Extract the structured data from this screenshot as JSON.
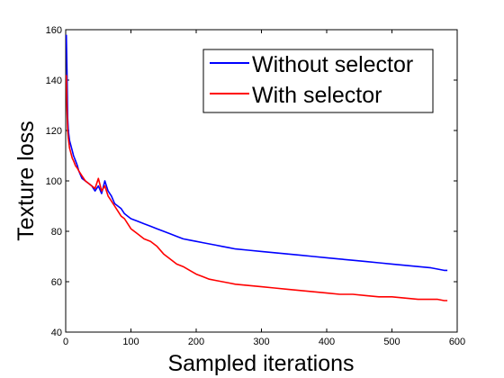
{
  "chart_data": {
    "type": "line",
    "title": "",
    "xlabel": "Sampled iterations",
    "ylabel": "Texture loss",
    "xlim": [
      0,
      600
    ],
    "ylim": [
      40,
      160
    ],
    "xticks": [
      0,
      100,
      200,
      300,
      400,
      500,
      600
    ],
    "yticks": [
      40,
      60,
      80,
      100,
      120,
      140,
      160
    ],
    "grid": false,
    "legend_position": "top-right",
    "series": [
      {
        "name": "Without selector",
        "color": "#0000ff",
        "x": [
          1,
          2,
          3,
          4,
          5,
          6,
          8,
          10,
          12,
          15,
          18,
          20,
          25,
          30,
          35,
          40,
          45,
          50,
          55,
          60,
          65,
          70,
          75,
          80,
          85,
          90,
          95,
          100,
          110,
          120,
          130,
          140,
          150,
          160,
          170,
          180,
          190,
          200,
          210,
          220,
          230,
          240,
          250,
          260,
          280,
          300,
          320,
          340,
          360,
          380,
          400,
          420,
          440,
          460,
          480,
          500,
          520,
          540,
          560,
          570,
          580,
          585
        ],
        "y": [
          158,
          142,
          125,
          120,
          118,
          116,
          114,
          112,
          110,
          108,
          106,
          104,
          101,
          100,
          99,
          98,
          96,
          98,
          95,
          100,
          96,
          94,
          91,
          90,
          89,
          87,
          86,
          85,
          84,
          83,
          82,
          81,
          80,
          79,
          78,
          77,
          76.5,
          76,
          75.5,
          75,
          74.5,
          74,
          73.5,
          73,
          72.5,
          72,
          71.5,
          71,
          70.5,
          70,
          69.5,
          69,
          68.5,
          68,
          67.5,
          67,
          66.5,
          66,
          65.5,
          65,
          64.5,
          64.5
        ]
      },
      {
        "name": "With selector",
        "color": "#ff0000",
        "x": [
          1,
          2,
          3,
          4,
          5,
          6,
          8,
          10,
          12,
          15,
          18,
          20,
          25,
          30,
          35,
          40,
          45,
          50,
          55,
          60,
          65,
          70,
          75,
          80,
          85,
          90,
          95,
          100,
          110,
          120,
          130,
          140,
          150,
          160,
          170,
          180,
          190,
          200,
          210,
          220,
          230,
          240,
          250,
          260,
          280,
          300,
          320,
          340,
          360,
          380,
          400,
          420,
          440,
          460,
          480,
          500,
          520,
          540,
          560,
          570,
          580,
          585
        ],
        "y": [
          142,
          128,
          120,
          117,
          115,
          113,
          111,
          109,
          108,
          106,
          105,
          104,
          102,
          100,
          99,
          98,
          97,
          101,
          96,
          98,
          94,
          92,
          90,
          88,
          86,
          85,
          83,
          81,
          79,
          77,
          76,
          74,
          71,
          69,
          67,
          66,
          64.5,
          63,
          62,
          61,
          60.5,
          60,
          59.5,
          59,
          58.5,
          58,
          57.5,
          57,
          56.5,
          56,
          55.5,
          55,
          55,
          54.5,
          54,
          54,
          53.5,
          53,
          53,
          53,
          52.5,
          52.5
        ]
      }
    ]
  }
}
